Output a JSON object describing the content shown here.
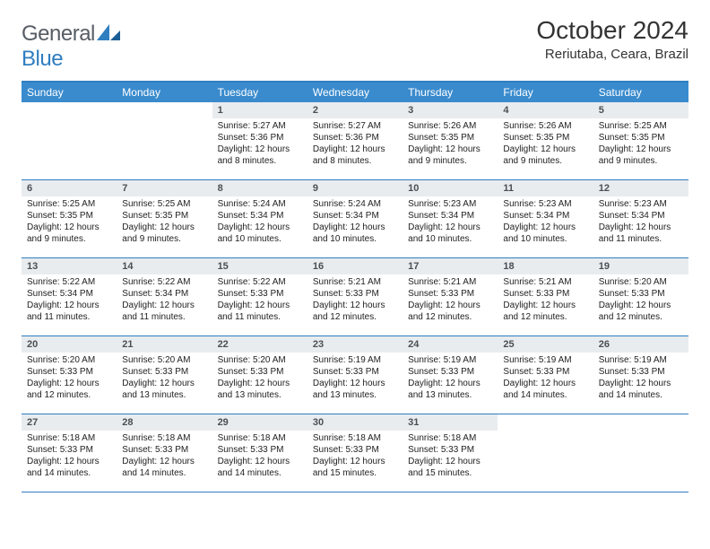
{
  "brand": {
    "name_a": "General",
    "name_b": "Blue"
  },
  "title": {
    "month": "October 2024",
    "location": "Reriutaba, Ceara, Brazil"
  },
  "colors": {
    "header_bg": "#3a8bcd",
    "border": "#2f7ec0",
    "daynum_bg": "#e9ecef",
    "text": "#222222",
    "logo_gray": "#565d64"
  },
  "dow": [
    "Sunday",
    "Monday",
    "Tuesday",
    "Wednesday",
    "Thursday",
    "Friday",
    "Saturday"
  ],
  "weeks": [
    [
      {
        "n": "",
        "sr": "",
        "ss": "",
        "dl": ""
      },
      {
        "n": "",
        "sr": "",
        "ss": "",
        "dl": ""
      },
      {
        "n": "1",
        "sr": "Sunrise: 5:27 AM",
        "ss": "Sunset: 5:36 PM",
        "dl": "Daylight: 12 hours and 8 minutes."
      },
      {
        "n": "2",
        "sr": "Sunrise: 5:27 AM",
        "ss": "Sunset: 5:36 PM",
        "dl": "Daylight: 12 hours and 8 minutes."
      },
      {
        "n": "3",
        "sr": "Sunrise: 5:26 AM",
        "ss": "Sunset: 5:35 PM",
        "dl": "Daylight: 12 hours and 9 minutes."
      },
      {
        "n": "4",
        "sr": "Sunrise: 5:26 AM",
        "ss": "Sunset: 5:35 PM",
        "dl": "Daylight: 12 hours and 9 minutes."
      },
      {
        "n": "5",
        "sr": "Sunrise: 5:25 AM",
        "ss": "Sunset: 5:35 PM",
        "dl": "Daylight: 12 hours and 9 minutes."
      }
    ],
    [
      {
        "n": "6",
        "sr": "Sunrise: 5:25 AM",
        "ss": "Sunset: 5:35 PM",
        "dl": "Daylight: 12 hours and 9 minutes."
      },
      {
        "n": "7",
        "sr": "Sunrise: 5:25 AM",
        "ss": "Sunset: 5:35 PM",
        "dl": "Daylight: 12 hours and 9 minutes."
      },
      {
        "n": "8",
        "sr": "Sunrise: 5:24 AM",
        "ss": "Sunset: 5:34 PM",
        "dl": "Daylight: 12 hours and 10 minutes."
      },
      {
        "n": "9",
        "sr": "Sunrise: 5:24 AM",
        "ss": "Sunset: 5:34 PM",
        "dl": "Daylight: 12 hours and 10 minutes."
      },
      {
        "n": "10",
        "sr": "Sunrise: 5:23 AM",
        "ss": "Sunset: 5:34 PM",
        "dl": "Daylight: 12 hours and 10 minutes."
      },
      {
        "n": "11",
        "sr": "Sunrise: 5:23 AM",
        "ss": "Sunset: 5:34 PM",
        "dl": "Daylight: 12 hours and 10 minutes."
      },
      {
        "n": "12",
        "sr": "Sunrise: 5:23 AM",
        "ss": "Sunset: 5:34 PM",
        "dl": "Daylight: 12 hours and 11 minutes."
      }
    ],
    [
      {
        "n": "13",
        "sr": "Sunrise: 5:22 AM",
        "ss": "Sunset: 5:34 PM",
        "dl": "Daylight: 12 hours and 11 minutes."
      },
      {
        "n": "14",
        "sr": "Sunrise: 5:22 AM",
        "ss": "Sunset: 5:34 PM",
        "dl": "Daylight: 12 hours and 11 minutes."
      },
      {
        "n": "15",
        "sr": "Sunrise: 5:22 AM",
        "ss": "Sunset: 5:33 PM",
        "dl": "Daylight: 12 hours and 11 minutes."
      },
      {
        "n": "16",
        "sr": "Sunrise: 5:21 AM",
        "ss": "Sunset: 5:33 PM",
        "dl": "Daylight: 12 hours and 12 minutes."
      },
      {
        "n": "17",
        "sr": "Sunrise: 5:21 AM",
        "ss": "Sunset: 5:33 PM",
        "dl": "Daylight: 12 hours and 12 minutes."
      },
      {
        "n": "18",
        "sr": "Sunrise: 5:21 AM",
        "ss": "Sunset: 5:33 PM",
        "dl": "Daylight: 12 hours and 12 minutes."
      },
      {
        "n": "19",
        "sr": "Sunrise: 5:20 AM",
        "ss": "Sunset: 5:33 PM",
        "dl": "Daylight: 12 hours and 12 minutes."
      }
    ],
    [
      {
        "n": "20",
        "sr": "Sunrise: 5:20 AM",
        "ss": "Sunset: 5:33 PM",
        "dl": "Daylight: 12 hours and 12 minutes."
      },
      {
        "n": "21",
        "sr": "Sunrise: 5:20 AM",
        "ss": "Sunset: 5:33 PM",
        "dl": "Daylight: 12 hours and 13 minutes."
      },
      {
        "n": "22",
        "sr": "Sunrise: 5:20 AM",
        "ss": "Sunset: 5:33 PM",
        "dl": "Daylight: 12 hours and 13 minutes."
      },
      {
        "n": "23",
        "sr": "Sunrise: 5:19 AM",
        "ss": "Sunset: 5:33 PM",
        "dl": "Daylight: 12 hours and 13 minutes."
      },
      {
        "n": "24",
        "sr": "Sunrise: 5:19 AM",
        "ss": "Sunset: 5:33 PM",
        "dl": "Daylight: 12 hours and 13 minutes."
      },
      {
        "n": "25",
        "sr": "Sunrise: 5:19 AM",
        "ss": "Sunset: 5:33 PM",
        "dl": "Daylight: 12 hours and 14 minutes."
      },
      {
        "n": "26",
        "sr": "Sunrise: 5:19 AM",
        "ss": "Sunset: 5:33 PM",
        "dl": "Daylight: 12 hours and 14 minutes."
      }
    ],
    [
      {
        "n": "27",
        "sr": "Sunrise: 5:18 AM",
        "ss": "Sunset: 5:33 PM",
        "dl": "Daylight: 12 hours and 14 minutes."
      },
      {
        "n": "28",
        "sr": "Sunrise: 5:18 AM",
        "ss": "Sunset: 5:33 PM",
        "dl": "Daylight: 12 hours and 14 minutes."
      },
      {
        "n": "29",
        "sr": "Sunrise: 5:18 AM",
        "ss": "Sunset: 5:33 PM",
        "dl": "Daylight: 12 hours and 14 minutes."
      },
      {
        "n": "30",
        "sr": "Sunrise: 5:18 AM",
        "ss": "Sunset: 5:33 PM",
        "dl": "Daylight: 12 hours and 15 minutes."
      },
      {
        "n": "31",
        "sr": "Sunrise: 5:18 AM",
        "ss": "Sunset: 5:33 PM",
        "dl": "Daylight: 12 hours and 15 minutes."
      },
      {
        "n": "",
        "sr": "",
        "ss": "",
        "dl": ""
      },
      {
        "n": "",
        "sr": "",
        "ss": "",
        "dl": ""
      }
    ]
  ]
}
